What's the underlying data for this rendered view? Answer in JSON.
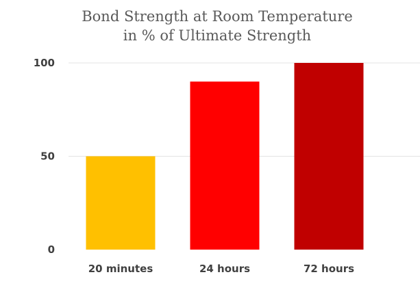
{
  "chart_data": {
    "type": "bar",
    "title": "Bond Strength at Room Temperature",
    "subtitle": "in % of Ultimate Strength",
    "xlabel": "",
    "ylabel": "",
    "categories": [
      "20 minutes",
      "24 hours",
      "72 hours"
    ],
    "values": [
      50,
      90,
      100
    ],
    "bar_colors": [
      "#FFC000",
      "#FF0000",
      "#C00000"
    ],
    "ylim": [
      0,
      100
    ],
    "yticks": [
      "0",
      "50",
      "100"
    ],
    "ytick_values": [
      0,
      50,
      100
    ],
    "grid": true,
    "legend": "none"
  }
}
